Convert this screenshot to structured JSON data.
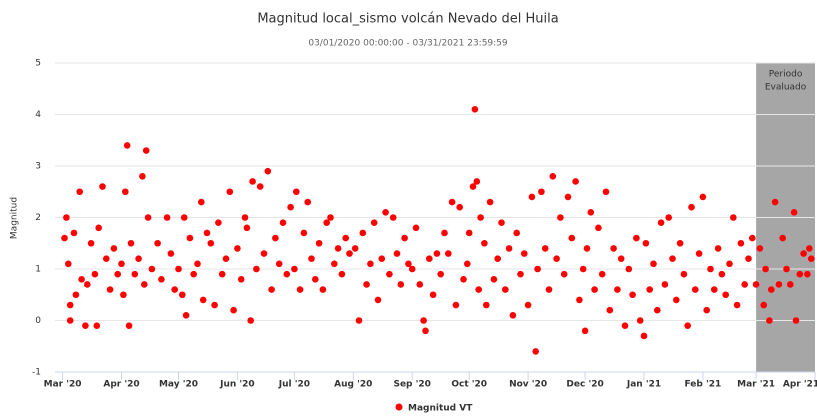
{
  "chart_data": {
    "type": "scatter",
    "title": "Magnitud local_sismo volcán Nevado del Huila",
    "subtitle": "03/01/2020 00:00:00 - 03/31/2021 23:59:59",
    "y_label": "Magnitud",
    "xlim": [
      "2020-02-26",
      "2021-04-01"
    ],
    "ylim": [
      -1,
      5
    ],
    "yticks": [
      -1,
      0,
      1,
      2,
      3,
      4,
      5
    ],
    "xticks": [
      {
        "value": "2020-03-01",
        "label": "Mar '20"
      },
      {
        "value": "2020-04-01",
        "label": "Apr '20"
      },
      {
        "value": "2020-05-01",
        "label": "May '20"
      },
      {
        "value": "2020-06-01",
        "label": "Jun '20"
      },
      {
        "value": "2020-07-01",
        "label": "Jul '20"
      },
      {
        "value": "2020-08-01",
        "label": "Aug '20"
      },
      {
        "value": "2020-09-01",
        "label": "Sep '20"
      },
      {
        "value": "2020-10-01",
        "label": "Oct '20"
      },
      {
        "value": "2020-11-01",
        "label": "Nov '20"
      },
      {
        "value": "2020-12-01",
        "label": "Dec '20"
      },
      {
        "value": "2021-01-01",
        "label": "Jan '21"
      },
      {
        "value": "2021-02-01",
        "label": "Feb '21"
      },
      {
        "value": "2021-03-01",
        "label": "Mar '21"
      },
      {
        "value": "2021-04-01",
        "label": "Apr '21"
      }
    ],
    "grid": true,
    "legend": "bottom",
    "band": {
      "from": "2021-03-01",
      "to": "2021-04-01",
      "label": [
        "Periodo",
        "Evaluado"
      ],
      "color": "#a6a6a6"
    },
    "series": [
      {
        "name": "Magnitud VT",
        "color": "#ff0000",
        "x": [
          "2020-03-02",
          "2020-03-03",
          "2020-03-04",
          "2020-03-05",
          "2020-03-05",
          "2020-03-07",
          "2020-03-08",
          "2020-03-10",
          "2020-03-11",
          "2020-03-13",
          "2020-03-14",
          "2020-03-16",
          "2020-03-18",
          "2020-03-19",
          "2020-03-20",
          "2020-03-22",
          "2020-03-24",
          "2020-03-26",
          "2020-03-28",
          "2020-03-30",
          "2020-04-01",
          "2020-04-02",
          "2020-04-03",
          "2020-04-04",
          "2020-04-05",
          "2020-04-06",
          "2020-04-08",
          "2020-04-10",
          "2020-04-12",
          "2020-04-13",
          "2020-04-14",
          "2020-04-15",
          "2020-04-17",
          "2020-04-20",
          "2020-04-22",
          "2020-04-25",
          "2020-04-27",
          "2020-04-29",
          "2020-05-01",
          "2020-05-03",
          "2020-05-04",
          "2020-05-05",
          "2020-05-07",
          "2020-05-09",
          "2020-05-11",
          "2020-05-13",
          "2020-05-14",
          "2020-05-16",
          "2020-05-18",
          "2020-05-20",
          "2020-05-22",
          "2020-05-24",
          "2020-05-26",
          "2020-05-28",
          "2020-05-30",
          "2020-06-01",
          "2020-06-03",
          "2020-06-05",
          "2020-06-06",
          "2020-06-08",
          "2020-06-09",
          "2020-06-11",
          "2020-06-13",
          "2020-06-15",
          "2020-06-17",
          "2020-06-19",
          "2020-06-21",
          "2020-06-23",
          "2020-06-25",
          "2020-06-27",
          "2020-06-29",
          "2020-07-01",
          "2020-07-02",
          "2020-07-04",
          "2020-07-06",
          "2020-07-08",
          "2020-07-10",
          "2020-07-12",
          "2020-07-14",
          "2020-07-16",
          "2020-07-18",
          "2020-07-20",
          "2020-07-22",
          "2020-07-24",
          "2020-07-26",
          "2020-07-28",
          "2020-07-30",
          "2020-08-02",
          "2020-08-04",
          "2020-08-06",
          "2020-08-08",
          "2020-08-10",
          "2020-08-12",
          "2020-08-14",
          "2020-08-16",
          "2020-08-18",
          "2020-08-20",
          "2020-08-22",
          "2020-08-24",
          "2020-08-26",
          "2020-08-28",
          "2020-08-30",
          "2020-09-01",
          "2020-09-03",
          "2020-09-05",
          "2020-09-07",
          "2020-09-08",
          "2020-09-10",
          "2020-09-12",
          "2020-09-14",
          "2020-09-16",
          "2020-09-18",
          "2020-09-20",
          "2020-09-22",
          "2020-09-24",
          "2020-09-26",
          "2020-09-28",
          "2020-09-30",
          "2020-10-01",
          "2020-10-03",
          "2020-10-04",
          "2020-10-05",
          "2020-10-06",
          "2020-10-07",
          "2020-10-09",
          "2020-10-10",
          "2020-10-12",
          "2020-10-14",
          "2020-10-16",
          "2020-10-18",
          "2020-10-20",
          "2020-10-22",
          "2020-10-24",
          "2020-10-26",
          "2020-10-28",
          "2020-10-30",
          "2020-11-01",
          "2020-11-03",
          "2020-11-05",
          "2020-11-06",
          "2020-11-08",
          "2020-11-10",
          "2020-11-12",
          "2020-11-14",
          "2020-11-16",
          "2020-11-18",
          "2020-11-20",
          "2020-11-22",
          "2020-11-24",
          "2020-11-26",
          "2020-11-28",
          "2020-11-30",
          "2020-12-01",
          "2020-12-02",
          "2020-12-04",
          "2020-12-06",
          "2020-12-08",
          "2020-12-10",
          "2020-12-12",
          "2020-12-14",
          "2020-12-16",
          "2020-12-18",
          "2020-12-20",
          "2020-12-22",
          "2020-12-24",
          "2020-12-26",
          "2020-12-28",
          "2020-12-30",
          "2021-01-01",
          "2021-01-02",
          "2021-01-04",
          "2021-01-06",
          "2021-01-08",
          "2021-01-10",
          "2021-01-12",
          "2021-01-14",
          "2021-01-16",
          "2021-01-18",
          "2021-01-20",
          "2021-01-22",
          "2021-01-24",
          "2021-01-26",
          "2021-01-28",
          "2021-01-30",
          "2021-02-01",
          "2021-02-03",
          "2021-02-05",
          "2021-02-07",
          "2021-02-09",
          "2021-02-11",
          "2021-02-13",
          "2021-02-15",
          "2021-02-17",
          "2021-02-19",
          "2021-02-21",
          "2021-02-23",
          "2021-02-25",
          "2021-02-27",
          "2021-03-01",
          "2021-03-03",
          "2021-03-05",
          "2021-03-06",
          "2021-03-08",
          "2021-03-09",
          "2021-03-11",
          "2021-03-13",
          "2021-03-15",
          "2021-03-17",
          "2021-03-19",
          "2021-03-21",
          "2021-03-22",
          "2021-03-24",
          "2021-03-26",
          "2021-03-28",
          "2021-03-29",
          "2021-03-30"
        ],
        "values": [
          1.6,
          2.0,
          1.1,
          0.3,
          0,
          1.7,
          0.5,
          2.5,
          0.8,
          -0.1,
          0.7,
          1.5,
          0.9,
          -0.1,
          1.8,
          2.6,
          1.2,
          0.6,
          1.4,
          0.9,
          1.1,
          0.5,
          2.5,
          3.4,
          -0.1,
          1.5,
          0.9,
          1.2,
          2.8,
          0.7,
          3.3,
          2.0,
          1.0,
          1.5,
          0.8,
          2.0,
          1.3,
          0.6,
          1.0,
          0.5,
          2.0,
          0.1,
          1.6,
          0.9,
          1.1,
          2.3,
          0.4,
          1.7,
          1.5,
          0.3,
          1.9,
          0.9,
          1.2,
          2.5,
          0.2,
          1.4,
          0.8,
          2.0,
          1.8,
          0,
          2.7,
          1.0,
          2.6,
          1.3,
          2.9,
          0.6,
          1.6,
          1.1,
          1.9,
          0.9,
          2.2,
          1.0,
          2.5,
          0.6,
          1.7,
          2.3,
          1.2,
          0.8,
          1.5,
          0.6,
          1.9,
          2.0,
          1.1,
          1.4,
          0.9,
          1.6,
          1.3,
          1.4,
          0,
          1.7,
          0.7,
          1.1,
          1.9,
          0.4,
          1.2,
          2.1,
          0.9,
          2.0,
          1.3,
          0.7,
          1.6,
          1.1,
          1.0,
          1.8,
          0.7,
          0,
          -0.2,
          1.2,
          0.5,
          1.3,
          0.9,
          1.7,
          1.3,
          2.3,
          0.3,
          2.2,
          0.8,
          1.1,
          1.7,
          2.6,
          4.1,
          2.7,
          0.6,
          2.0,
          1.5,
          0.3,
          2.3,
          0.8,
          1.2,
          1.9,
          0.6,
          1.4,
          0.1,
          1.7,
          0.9,
          1.3,
          0.3,
          2.4,
          -0.6,
          1.0,
          2.5,
          1.4,
          0.6,
          2.8,
          1.2,
          2.0,
          0.9,
          2.4,
          1.6,
          2.7,
          0.4,
          1.0,
          -0.2,
          1.4,
          2.1,
          0.6,
          1.8,
          0.9,
          2.5,
          0.2,
          1.4,
          0.6,
          1.2,
          -0.1,
          1.0,
          0.5,
          1.6,
          0,
          -0.3,
          1.5,
          0.6,
          1.1,
          0.2,
          1.9,
          0.7,
          2.0,
          1.2,
          0.4,
          1.5,
          0.9,
          -0.1,
          2.2,
          0.6,
          1.3,
          2.4,
          0.2,
          1.0,
          0.6,
          1.4,
          0.9,
          0.5,
          1.1,
          2.0,
          0.3,
          1.5,
          0.7,
          1.2,
          1.6,
          0.7,
          1.4,
          0.3,
          1.0,
          0,
          0.6,
          2.3,
          0.7,
          1.6,
          1.0,
          0.7,
          2.1,
          0,
          0.9,
          1.3,
          0.9,
          1.4,
          1.2
        ]
      }
    ]
  }
}
